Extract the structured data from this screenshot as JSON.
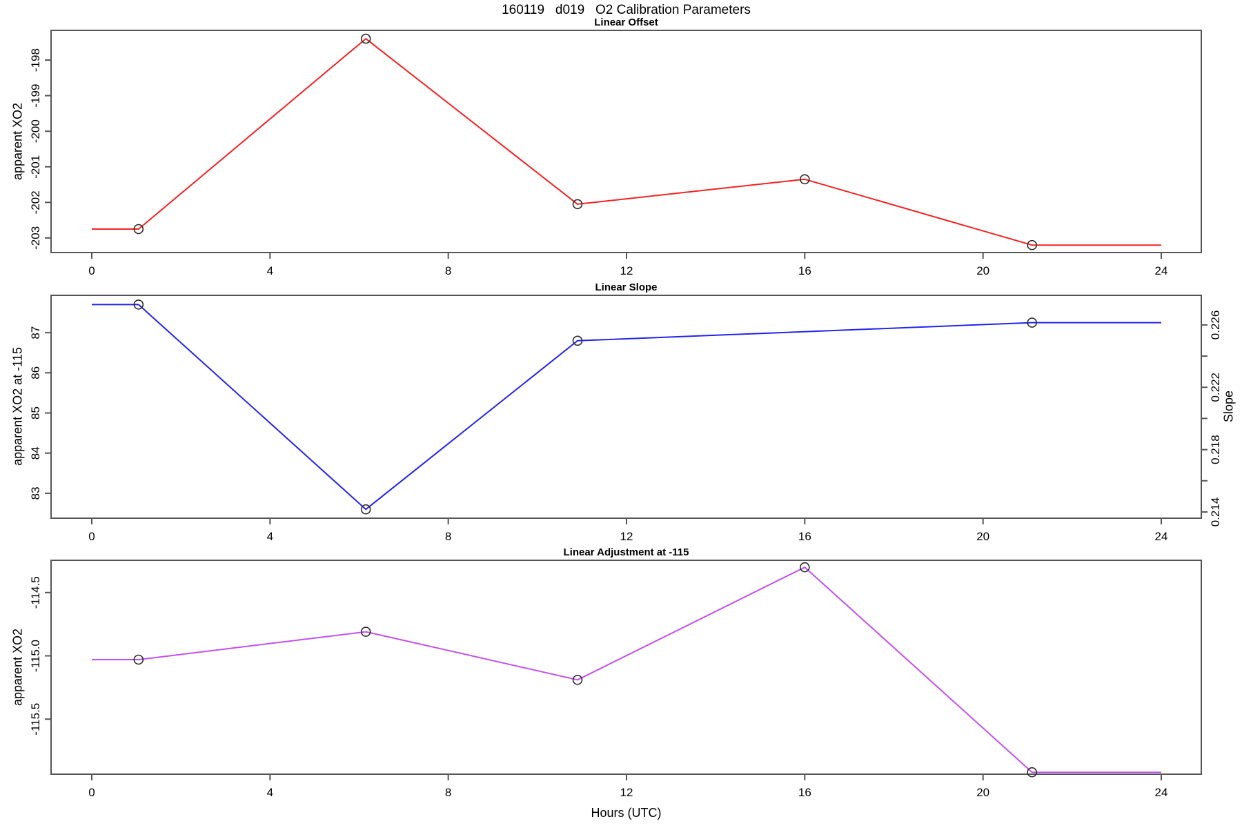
{
  "title": "160119   d019   O2 Calibration Parameters",
  "x_axis": {
    "label": "Hours (UTC)",
    "min": 0,
    "max": 24,
    "ticks": [
      0,
      4,
      8,
      12,
      16,
      20,
      24
    ],
    "tick_labels": [
      "0",
      "4",
      "8",
      "12",
      "16",
      "20",
      "24"
    ]
  },
  "colors": {
    "frame": "#555555",
    "marker": "#2a2a2a",
    "text": "#000000"
  },
  "chart_data": [
    {
      "type": "line",
      "title": "Linear Offset",
      "ylabel": "apparent XO2",
      "color": "#f52020",
      "ylim": [
        -203.41,
        -197.165
      ],
      "yticks": [
        {
          "v": -198,
          "label": "-198"
        },
        {
          "v": -199,
          "label": "-199"
        },
        {
          "v": -200,
          "label": "-200"
        },
        {
          "v": -201,
          "label": "-201"
        },
        {
          "v": -202,
          "label": "-202"
        },
        {
          "v": -203,
          "label": "-203"
        }
      ],
      "x": [
        0,
        1.05,
        6.15,
        10.9,
        16.0,
        21.1,
        24
      ],
      "y": [
        -202.75,
        -202.75,
        -197.4,
        -202.05,
        -201.35,
        -203.2,
        -203.2
      ],
      "marker_indices": [
        1,
        2,
        3,
        4,
        5
      ]
    },
    {
      "type": "line",
      "title": "Linear Slope",
      "ylabel": "apparent XO2 at -115",
      "color": "#2222ee",
      "ylim": [
        82.38,
        87.93
      ],
      "yticks": [
        {
          "v": 87,
          "label": "87"
        },
        {
          "v": 86,
          "label": "86"
        },
        {
          "v": 85,
          "label": "85"
        },
        {
          "v": 84,
          "label": "84"
        },
        {
          "v": 83,
          "label": "83"
        }
      ],
      "right_axis": {
        "label": "Slope",
        "lim": [
          0.2136,
          0.2279
        ],
        "ticks": [
          {
            "v": 0.226,
            "label": "0.226"
          },
          {
            "v": 0.224,
            "label": ""
          },
          {
            "v": 0.222,
            "label": "0.222"
          },
          {
            "v": 0.22,
            "label": ""
          },
          {
            "v": 0.218,
            "label": "0.218"
          },
          {
            "v": 0.216,
            "label": ""
          },
          {
            "v": 0.214,
            "label": "0.214"
          }
        ]
      },
      "x": [
        0,
        1.05,
        6.15,
        10.9,
        21.1,
        24
      ],
      "y": [
        87.7,
        87.7,
        82.6,
        86.8,
        87.25,
        87.25
      ],
      "slope_values": [
        0.2273,
        0.2142,
        0.225,
        0.2261
      ],
      "marker_indices": [
        1,
        2,
        3,
        4
      ]
    },
    {
      "type": "line",
      "title": "Linear Adjustment at -115",
      "ylabel": "apparent XO2",
      "color": "#c24fee",
      "ylim": [
        -115.935,
        -114.245
      ],
      "yticks": [
        {
          "v": -114.5,
          "label": "-114.5"
        },
        {
          "v": -115.0,
          "label": "-115.0"
        },
        {
          "v": -115.5,
          "label": "-115.5"
        }
      ],
      "x": [
        0,
        1.05,
        6.15,
        10.9,
        16.0,
        21.1,
        24
      ],
      "y": [
        -115.03,
        -115.03,
        -114.81,
        -115.19,
        -114.3,
        -115.92,
        -115.92
      ],
      "marker_indices": [
        1,
        2,
        3,
        4,
        5
      ]
    }
  ]
}
